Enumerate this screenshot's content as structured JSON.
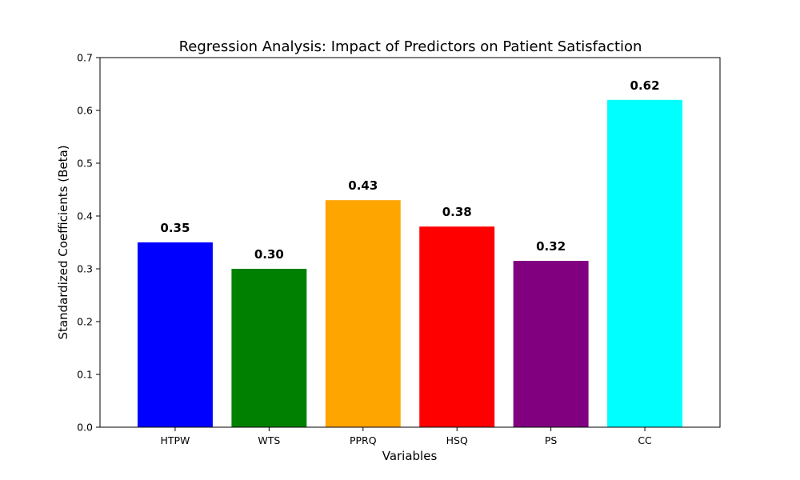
{
  "chart_data": {
    "type": "bar",
    "title": "Regression Analysis: Impact of Predictors on Patient Satisfaction",
    "xlabel": "Variables",
    "ylabel": "Standardized Coefficients (Beta)",
    "ylim": [
      0,
      0.7
    ],
    "yticks": [
      0.0,
      0.1,
      0.2,
      0.3,
      0.4,
      0.5,
      0.6,
      0.7
    ],
    "ytick_labels": [
      "0.0",
      "0.1",
      "0.2",
      "0.3",
      "0.4",
      "0.5",
      "0.6",
      "0.7"
    ],
    "categories": [
      "HTPW",
      "WTS",
      "PPRQ",
      "HSQ",
      "PS",
      "CC"
    ],
    "values": [
      0.35,
      0.3,
      0.43,
      0.38,
      0.315,
      0.62
    ],
    "data_labels": [
      "0.35",
      "0.30",
      "0.43",
      "0.38",
      "0.32",
      "0.62"
    ],
    "colors": [
      "#0000ff",
      "#008000",
      "#ffa500",
      "#ff0000",
      "#800080",
      "#00ffff"
    ],
    "grid": false,
    "legend": "none"
  }
}
